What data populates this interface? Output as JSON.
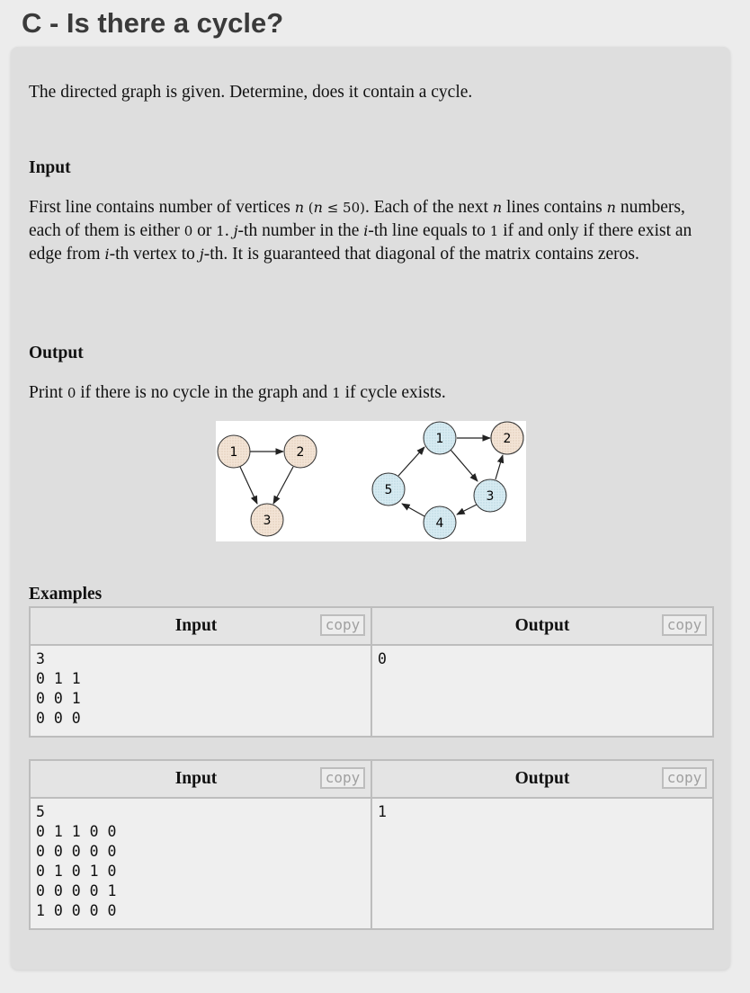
{
  "title": "C - Is there a cycle?",
  "statement": "The directed graph is given. Determine, does it contain a cycle.",
  "input_section": {
    "heading": "Input",
    "t1": "First line contains number of vertices ",
    "m_n": "n",
    "m_cond_open": " (",
    "m_cond_n": "n",
    "m_cond_rest": " ≤ 50)",
    "t2": ". Each of the next ",
    "m_n2": "n",
    "t3": " lines contains ",
    "m_n3": "n",
    "t4": " numbers, each of them is either ",
    "zero": "0",
    "t5": " or ",
    "one": "1",
    "t6": ". ",
    "m_j": "j",
    "t7": "-th number in the ",
    "m_i": "i",
    "t8": "-th line equals to ",
    "one2": "1",
    "t9": " if and only if there exist an edge from ",
    "m_i2": "i",
    "t10": "-th vertex to ",
    "m_j2": "j",
    "t11": "-th. It is guaranteed that diagonal of the matrix contains zeros."
  },
  "output_section": {
    "heading": "Output",
    "t1": "Print ",
    "zero": "0",
    "t2": " if there is no cycle in the graph and ",
    "one": "1",
    "t3": " if cycle exists."
  },
  "figure": {
    "graph1": {
      "nodes": [
        "1",
        "2",
        "3"
      ],
      "edges": [
        [
          "1",
          "2"
        ],
        [
          "1",
          "3"
        ],
        [
          "2",
          "3"
        ]
      ],
      "fill": "#f5e6da"
    },
    "graph2": {
      "nodes": [
        "1",
        "2",
        "3",
        "4",
        "5"
      ],
      "edges": [
        [
          "1",
          "2"
        ],
        [
          "1",
          "3"
        ],
        [
          "3",
          "2"
        ],
        [
          "3",
          "4"
        ],
        [
          "4",
          "5"
        ],
        [
          "5",
          "1"
        ]
      ],
      "fill": "#d8ecf2"
    }
  },
  "examples_heading": "Examples",
  "examples": [
    {
      "input_label": "Input",
      "output_label": "Output",
      "copy": "copy",
      "input": "3\n0 1 1\n0 0 1\n0 0 0",
      "output": "0"
    },
    {
      "input_label": "Input",
      "output_label": "Output",
      "copy": "copy",
      "input": "5\n0 1 1 0 0\n0 0 0 0 0\n0 1 0 1 0\n0 0 0 0 1\n1 0 0 0 0",
      "output": "1"
    }
  ]
}
